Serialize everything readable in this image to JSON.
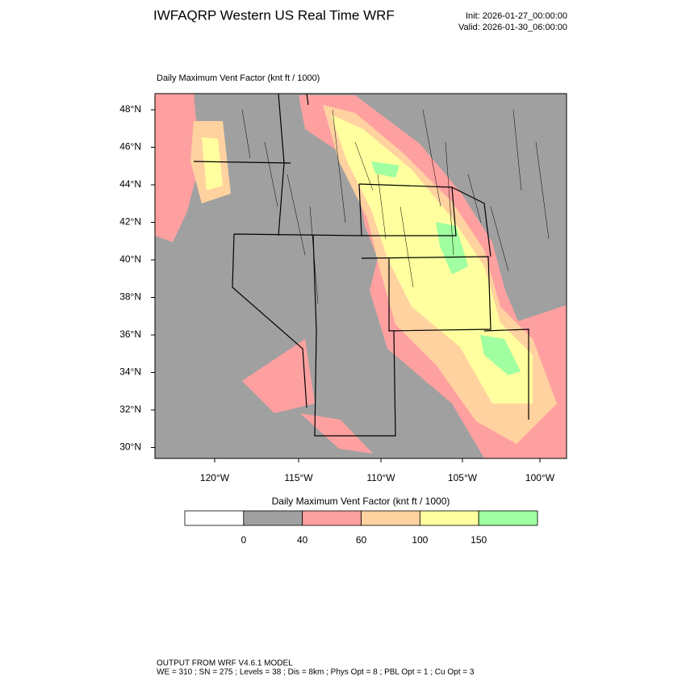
{
  "header": {
    "title": "IWFAQRP Western US Real Time WRF",
    "init": "Init: 2026-01-27_00:00:00",
    "valid": "Valid: 2026-01-30_06:00:00"
  },
  "map": {
    "title": "Daily Maximum Vent Factor   (knt ft / 1000)",
    "lat_labels": [
      "48°N",
      "46°N",
      "44°N",
      "42°N",
      "40°N",
      "38°N",
      "36°N",
      "34°N",
      "32°N",
      "30°N"
    ],
    "lon_labels": [
      "120°W",
      "115°W",
      "110°W",
      "105°W",
      "100°W"
    ]
  },
  "colorbar": {
    "title": "Daily Maximum Vent Factor  (knt ft / 1000)",
    "levels": [
      0,
      40,
      60,
      100,
      150
    ],
    "colors": [
      "#ffffff",
      "#a0a0a0",
      "#ffa0a0",
      "#ffd2a0",
      "#ffff9f",
      "#a0ffa0"
    ]
  },
  "footer": {
    "line1": "OUTPUT FROM WRF V4.6.1 MODEL",
    "line2": "WE = 310 ; SN = 275 ; Levels = 38 ; Dis = 8km ; Phys Opt = 8 ; PBL Opt = 1 ; Cu Opt = 3"
  }
}
